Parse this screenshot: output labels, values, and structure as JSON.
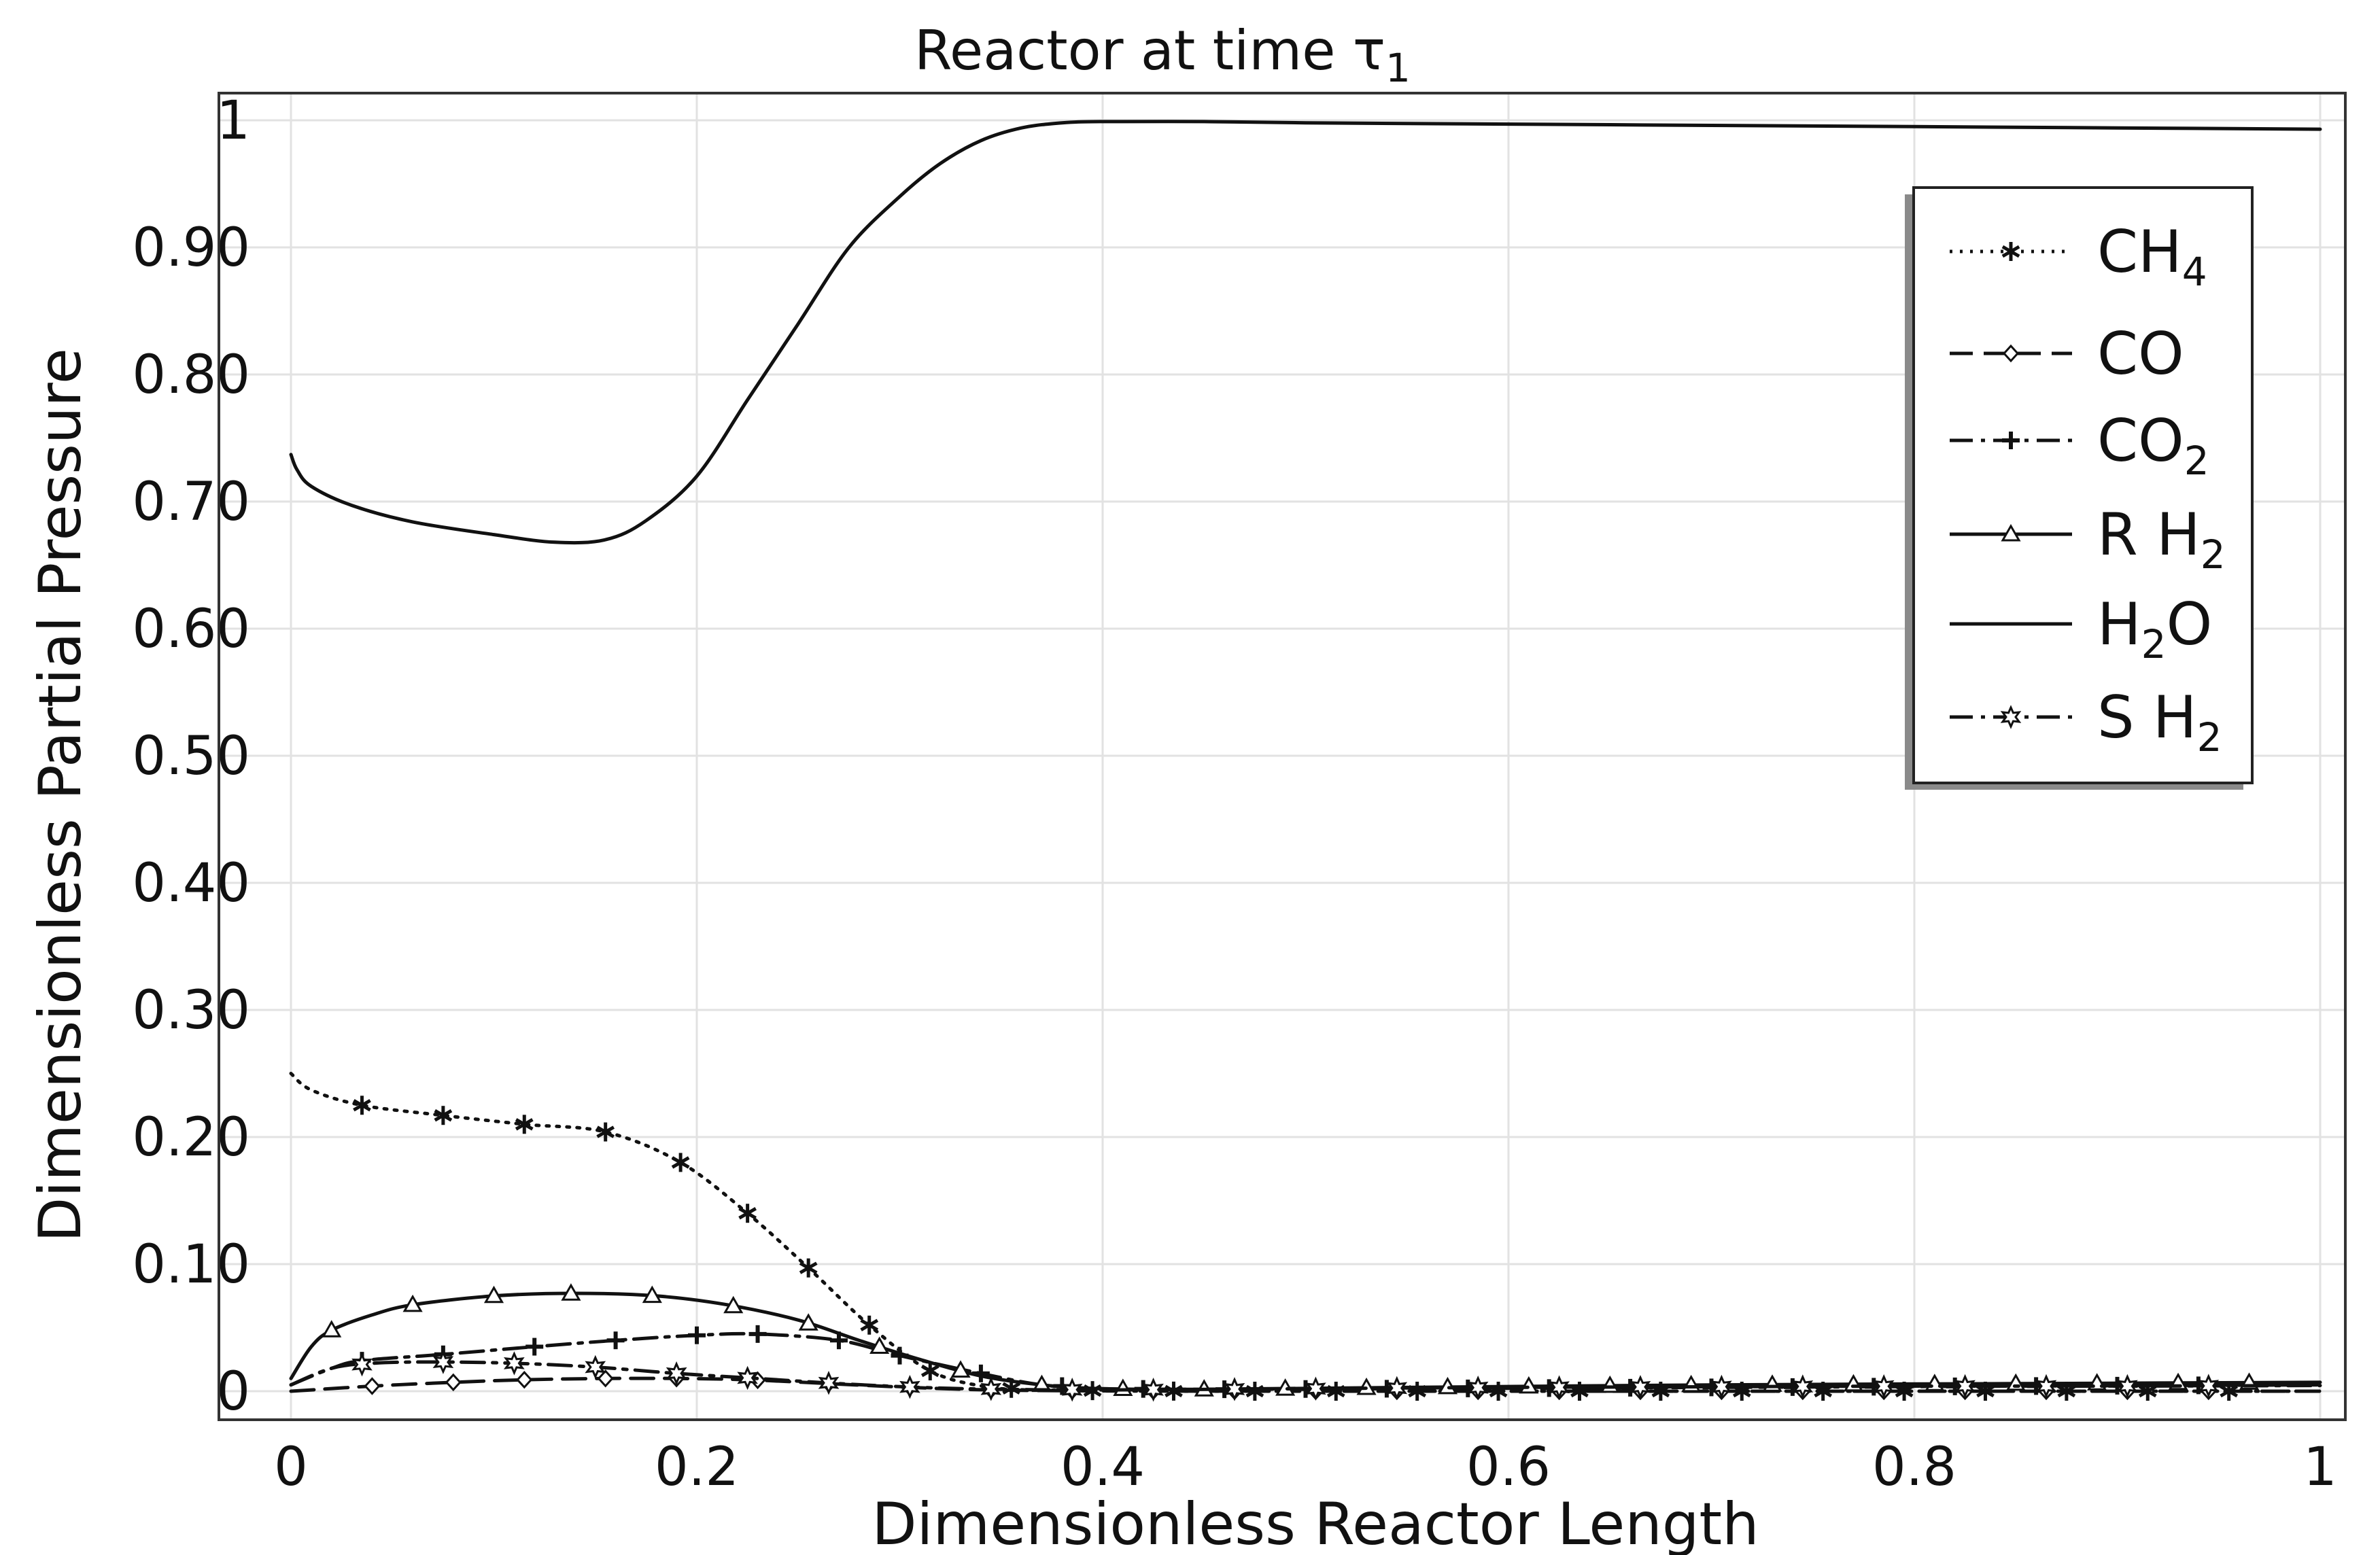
{
  "chart_data": {
    "type": "line",
    "title": "Reactor at time τ1",
    "title_parts": {
      "main": "Reactor at time τ",
      "sub": "1"
    },
    "xlabel": "Dimensionless Reactor Length",
    "ylabel": "Dimensionless Partial Pressure",
    "xlim": [
      0,
      1
    ],
    "ylim": [
      0,
      1
    ],
    "grid": true,
    "legend_position": "top-right",
    "x_ticks": [
      0,
      0.2,
      0.4,
      0.6,
      0.8,
      1
    ],
    "x_tick_labels": [
      "0",
      "0.2",
      "0.4",
      "0.6",
      "0.8",
      "1"
    ],
    "y_ticks": [
      0,
      0.1,
      0.2,
      0.3,
      0.4,
      0.5,
      0.6,
      0.7,
      0.8,
      0.9,
      1
    ],
    "y_tick_labels": [
      "0",
      "0.10",
      "0.20",
      "0.30",
      "0.40",
      "0.50",
      "0.60",
      "0.70",
      "0.80",
      "0.90",
      "1"
    ],
    "series": [
      {
        "name": "CH4",
        "label_main": "CH",
        "label_sub": "4",
        "line_style": "dotted",
        "marker": "asterisk",
        "x": [
          0,
          0.01,
          0.035,
          0.075,
          0.115,
          0.155,
          0.192,
          0.225,
          0.255,
          0.285,
          0.315,
          0.345,
          0.375,
          0.41,
          0.45,
          0.5,
          0.6,
          0.7,
          0.8,
          0.9,
          1.0
        ],
        "y": [
          0.25,
          0.237,
          0.225,
          0.217,
          0.21,
          0.204,
          0.18,
          0.14,
          0.097,
          0.052,
          0.016,
          0.003,
          0.0008,
          0.0002,
          0.0,
          0.0,
          0.0,
          0.0,
          0.0,
          0.0,
          0.0
        ],
        "markers_x": [
          0.035,
          0.075,
          0.115,
          0.155,
          0.192,
          0.225,
          0.255,
          0.285,
          0.315,
          0.355,
          0.395,
          0.435,
          0.475,
          0.515,
          0.555,
          0.595,
          0.635,
          0.675,
          0.715,
          0.755,
          0.795,
          0.835,
          0.875,
          0.915,
          0.955
        ]
      },
      {
        "name": "CO",
        "label_main": "CO",
        "label_sub": "",
        "line_style": "long-dash",
        "marker": "diamond",
        "x": [
          0,
          0.04,
          0.08,
          0.115,
          0.155,
          0.19,
          0.225,
          0.265,
          0.305,
          0.345,
          0.4,
          0.5,
          0.6,
          0.7,
          0.8,
          0.9,
          1.0
        ],
        "y": [
          0.0,
          0.004,
          0.007,
          0.009,
          0.01,
          0.01,
          0.009,
          0.006,
          0.003,
          0.001,
          0.0002,
          0.0,
          0.0,
          0.0,
          0.0,
          0.0,
          0.0
        ],
        "markers_x": [
          0.04,
          0.08,
          0.115,
          0.155,
          0.19,
          0.23,
          0.265,
          0.305,
          0.345,
          0.385,
          0.425,
          0.465,
          0.505,
          0.545,
          0.585,
          0.625,
          0.665,
          0.705,
          0.745,
          0.785,
          0.825,
          0.865,
          0.905,
          0.945
        ]
      },
      {
        "name": "CO2",
        "label_main": "CO",
        "label_sub": "2",
        "line_style": "dash-dot",
        "marker": "plus",
        "x": [
          0,
          0.02,
          0.035,
          0.075,
          0.12,
          0.16,
          0.2,
          0.23,
          0.27,
          0.3,
          0.34,
          0.37,
          0.4,
          0.45,
          0.55,
          0.7,
          0.85,
          1.0
        ],
        "y": [
          0.005,
          0.018,
          0.024,
          0.029,
          0.035,
          0.04,
          0.044,
          0.045,
          0.04,
          0.028,
          0.014,
          0.005,
          0.002,
          0.0015,
          0.002,
          0.003,
          0.004,
          0.005
        ],
        "markers_x": [
          0.035,
          0.075,
          0.12,
          0.16,
          0.2,
          0.23,
          0.27,
          0.3,
          0.34,
          0.38,
          0.42,
          0.46,
          0.5,
          0.54,
          0.58,
          0.62,
          0.66,
          0.7,
          0.74,
          0.78,
          0.82,
          0.86,
          0.9,
          0.94
        ]
      },
      {
        "name": "R H2",
        "label_main": "R H",
        "label_sub": "2",
        "line_style": "solid",
        "marker": "triangle",
        "x": [
          0,
          0.01,
          0.02,
          0.04,
          0.06,
          0.1,
          0.14,
          0.18,
          0.215,
          0.25,
          0.28,
          0.31,
          0.34,
          0.37,
          0.4,
          0.45,
          0.55,
          0.7,
          0.85,
          1.0
        ],
        "y": [
          0.01,
          0.035,
          0.048,
          0.06,
          0.068,
          0.075,
          0.077,
          0.075,
          0.068,
          0.056,
          0.04,
          0.025,
          0.012,
          0.005,
          0.002,
          0.0015,
          0.003,
          0.005,
          0.006,
          0.007
        ],
        "markers_x": [
          0.02,
          0.06,
          0.1,
          0.138,
          0.178,
          0.218,
          0.255,
          0.29,
          0.33,
          0.37,
          0.41,
          0.45,
          0.49,
          0.53,
          0.57,
          0.61,
          0.65,
          0.69,
          0.73,
          0.77,
          0.81,
          0.85,
          0.89,
          0.93,
          0.965
        ]
      },
      {
        "name": "H2O",
        "label_main": "H",
        "label_sub": "2",
        "label_tail": "O",
        "line_style": "solid",
        "marker": "none",
        "x": [
          0,
          0.003,
          0.01,
          0.03,
          0.06,
          0.1,
          0.13,
          0.155,
          0.175,
          0.2,
          0.225,
          0.25,
          0.275,
          0.3,
          0.32,
          0.34,
          0.36,
          0.38,
          0.4,
          0.45,
          0.5,
          0.6,
          0.7,
          0.8,
          0.9,
          1.0
        ],
        "y": [
          0.737,
          0.725,
          0.712,
          0.697,
          0.684,
          0.674,
          0.668,
          0.67,
          0.685,
          0.72,
          0.78,
          0.84,
          0.9,
          0.94,
          0.966,
          0.984,
          0.994,
          0.998,
          0.999,
          0.999,
          0.998,
          0.997,
          0.996,
          0.995,
          0.994,
          0.993
        ],
        "markers_x": []
      },
      {
        "name": "S H2",
        "label_main": "S H",
        "label_sub": "2",
        "line_style": "dash-dot",
        "marker": "star",
        "x": [
          0,
          0.02,
          0.04,
          0.07,
          0.11,
          0.15,
          0.19,
          0.23,
          0.27,
          0.31,
          0.35,
          0.4,
          0.5,
          0.6,
          0.7,
          0.8,
          0.9,
          1.0
        ],
        "y": [
          0.005,
          0.018,
          0.022,
          0.023,
          0.022,
          0.019,
          0.014,
          0.01,
          0.006,
          0.003,
          0.0015,
          0.001,
          0.002,
          0.003,
          0.0035,
          0.004,
          0.004,
          0.0045
        ],
        "markers_x": [
          0.035,
          0.075,
          0.11,
          0.15,
          0.19,
          0.225,
          0.265,
          0.305,
          0.345,
          0.385,
          0.425,
          0.465,
          0.505,
          0.545,
          0.585,
          0.625,
          0.665,
          0.705,
          0.745,
          0.785,
          0.825,
          0.865,
          0.905,
          0.945
        ]
      }
    ]
  }
}
